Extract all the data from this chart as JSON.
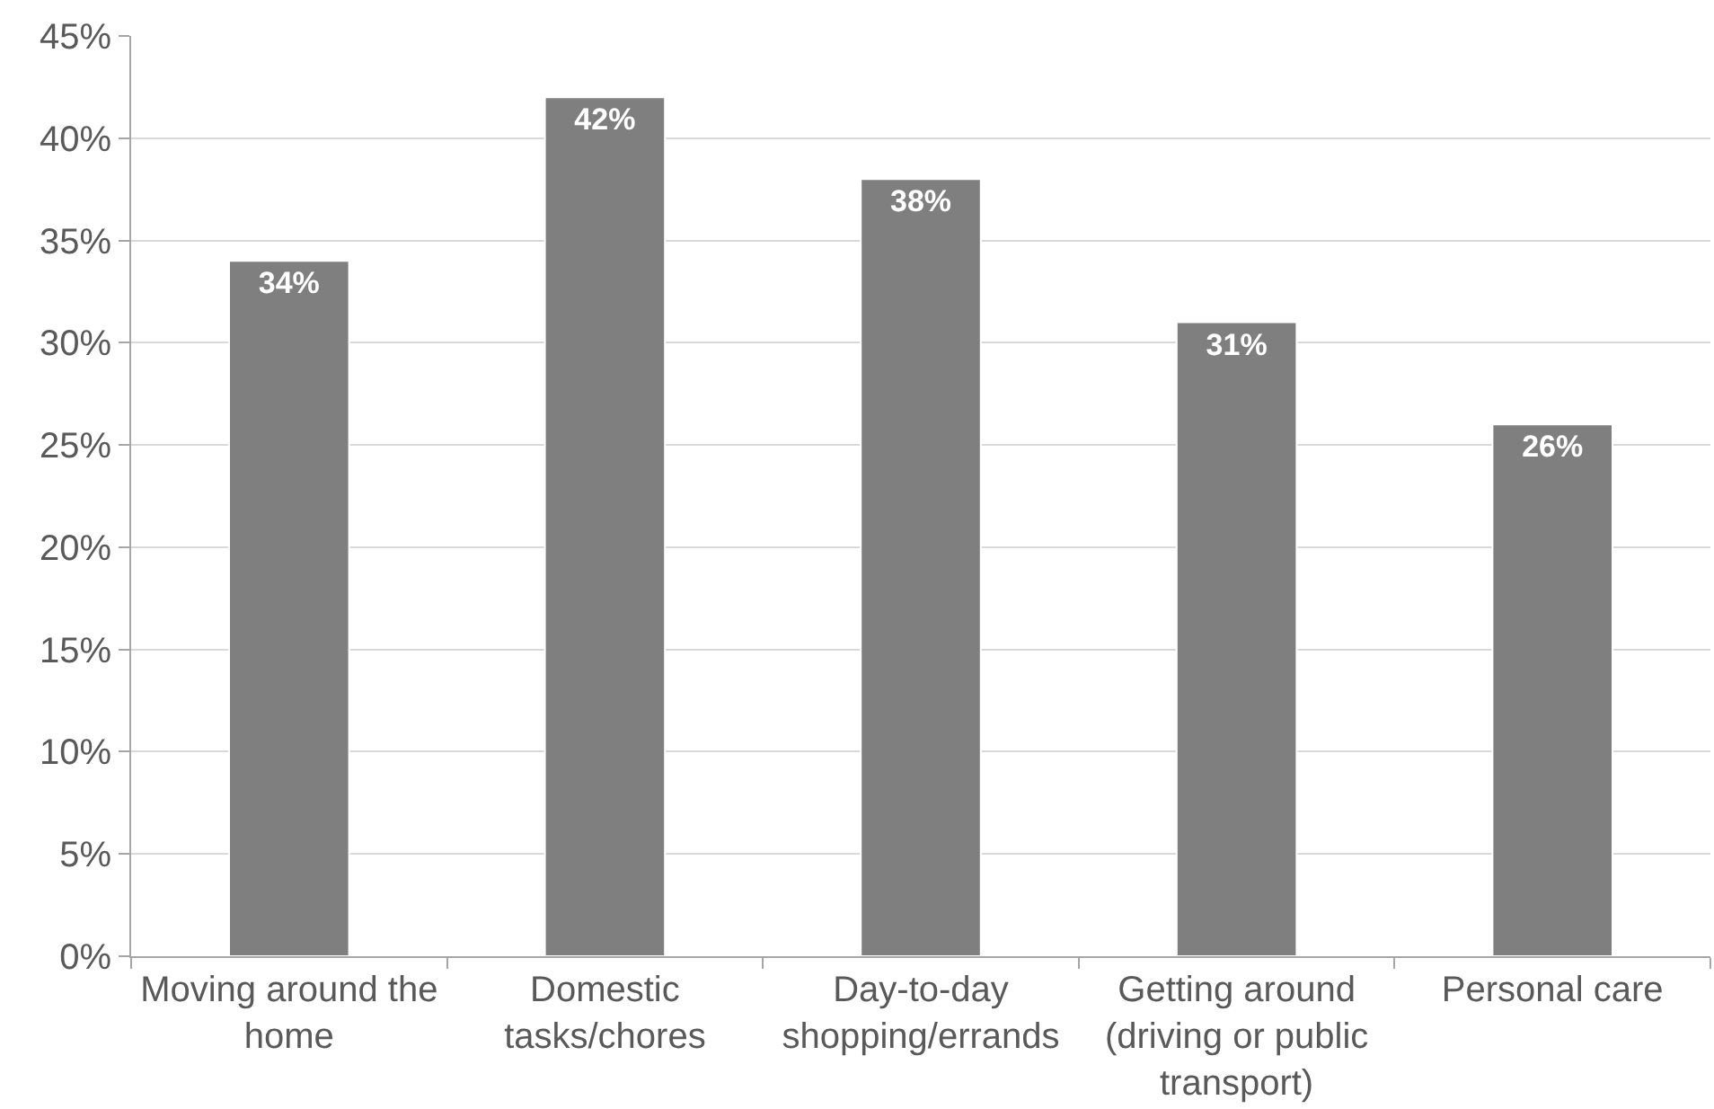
{
  "chart_data": {
    "type": "bar",
    "categories": [
      "Moving around the home",
      "Domestic tasks/chores",
      "Day-to-day shopping/errands",
      "Getting around (driving or public transport)",
      "Personal care"
    ],
    "values": [
      34,
      42,
      38,
      31,
      26
    ],
    "color": "#7f7f7f",
    "value_labels": [
      "34%",
      "42%",
      "38%",
      "31%",
      "26%"
    ],
    "ylim": [
      0,
      45
    ],
    "yticks": [
      {
        "value": 0,
        "label": "0%"
      },
      {
        "value": 5,
        "label": "5%"
      },
      {
        "value": 10,
        "label": "10%"
      },
      {
        "value": 15,
        "label": "15%"
      },
      {
        "value": 20,
        "label": "20%"
      },
      {
        "value": 25,
        "label": "25%"
      },
      {
        "value": 30,
        "label": "30%"
      },
      {
        "value": 35,
        "label": "35%"
      },
      {
        "value": 40,
        "label": "40%"
      },
      {
        "value": 45,
        "label": "45%"
      }
    ],
    "grid": "y"
  }
}
